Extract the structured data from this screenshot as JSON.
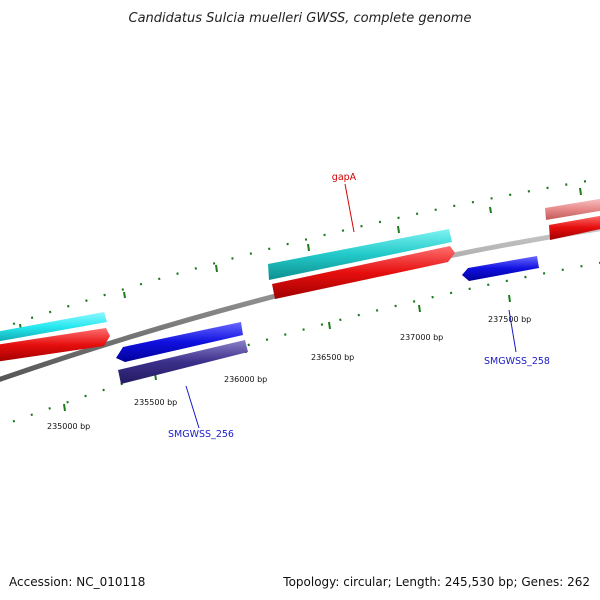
{
  "title": "Candidatus Sulcia muelleri GWSS, complete genome",
  "footer": {
    "accession": "Accession: NC_010118",
    "summary": "Topology: circular; Length: 245,530 bp; Genes: 262"
  },
  "ticks": [
    "235000 bp",
    "235500 bp",
    "236000 bp",
    "236500 bp",
    "237000 bp",
    "237500 bp"
  ],
  "gene_labels": [
    {
      "name": "gapA",
      "color": "#d10000"
    },
    {
      "name": "SMGWSS_256",
      "color": "#1a1ac8"
    },
    {
      "name": "SMGWSS_258",
      "color": "#1a1ac8"
    }
  ],
  "colors": {
    "backbone": "#8a8a8a",
    "tick": "#1d7a1d",
    "cds_cyan": "#22c9c9",
    "cds_cyan_bright": "#26e8f0",
    "cds_red": "#e60e0e",
    "cds_blue": "#1010e0",
    "cds_navy": "#3b2f8a",
    "cds_pink": "#e88a8a"
  }
}
